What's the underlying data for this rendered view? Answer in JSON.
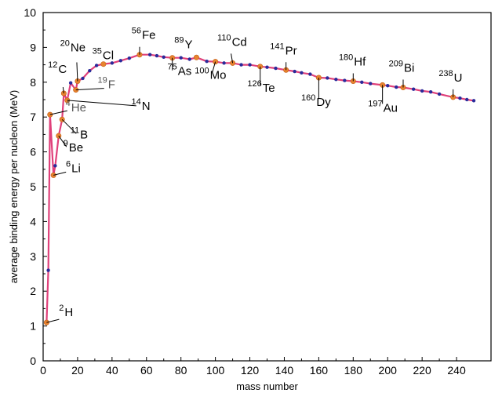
{
  "chart_data": {
    "type": "line",
    "title": "",
    "xlabel": "mass number",
    "ylabel": "average binding energy per nucleon (MeV)",
    "xlim": [
      0,
      260
    ],
    "ylim": [
      0,
      10
    ],
    "x_ticks": [
      0,
      20,
      40,
      60,
      80,
      100,
      120,
      140,
      160,
      180,
      200,
      220,
      240
    ],
    "y_ticks": [
      0,
      1,
      2,
      3,
      4,
      5,
      6,
      7,
      8,
      9,
      10
    ],
    "colors": {
      "curve": "#e0407a",
      "points": "#2a2a9a",
      "labeled_points": "#e8832e"
    },
    "series": [
      {
        "x": [
          2,
          3,
          4,
          6,
          7,
          9,
          11,
          12,
          14,
          16,
          19,
          20,
          23,
          27,
          31,
          35,
          40,
          45,
          50,
          56,
          62,
          66,
          70,
          75,
          80,
          85,
          89,
          95,
          100,
          105,
          110,
          115,
          120,
          126,
          130,
          135,
          141,
          146,
          150,
          155,
          160,
          165,
          170,
          175,
          180,
          185,
          190,
          197,
          200,
          205,
          209,
          215,
          220,
          225,
          230,
          238,
          242,
          246,
          250
        ],
        "y": [
          1.1,
          2.6,
          7.07,
          5.33,
          5.6,
          6.46,
          6.93,
          7.68,
          7.48,
          7.98,
          7.78,
          8.03,
          8.11,
          8.33,
          8.48,
          8.52,
          8.55,
          8.62,
          8.69,
          8.79,
          8.79,
          8.76,
          8.72,
          8.7,
          8.7,
          8.66,
          8.71,
          8.6,
          8.59,
          8.55,
          8.55,
          8.5,
          8.5,
          8.45,
          8.43,
          8.4,
          8.35,
          8.31,
          8.27,
          8.23,
          8.13,
          8.12,
          8.08,
          8.05,
          8.03,
          8.0,
          7.96,
          7.92,
          7.9,
          7.86,
          7.85,
          7.8,
          7.75,
          7.72,
          7.66,
          7.57,
          7.54,
          7.5,
          7.47
        ]
      }
    ],
    "isotopes": [
      {
        "mass": "2",
        "symbol": "H",
        "x": 2,
        "y": 1.1
      },
      {
        "mass": "6",
        "symbol": "Li",
        "x": 6,
        "y": 5.33
      },
      {
        "mass": "9",
        "symbol": "Be",
        "x": 9,
        "y": 6.46
      },
      {
        "mass": "4",
        "symbol": "He",
        "x": 4,
        "y": 7.07
      },
      {
        "mass": "11",
        "symbol": "B",
        "x": 11,
        "y": 6.93
      },
      {
        "mass": "14",
        "symbol": "N",
        "x": 14,
        "y": 7.48
      },
      {
        "mass": "12",
        "symbol": "C",
        "x": 12,
        "y": 7.68
      },
      {
        "mass": "19",
        "symbol": "F",
        "x": 19,
        "y": 7.78
      },
      {
        "mass": "20",
        "symbol": "Ne",
        "x": 20,
        "y": 8.03
      },
      {
        "mass": "35",
        "symbol": "Cl",
        "x": 35,
        "y": 8.52
      },
      {
        "mass": "56",
        "symbol": "Fe",
        "x": 56,
        "y": 8.79
      },
      {
        "mass": "75",
        "symbol": "As",
        "x": 75,
        "y": 8.7
      },
      {
        "mass": "89",
        "symbol": "Y",
        "x": 89,
        "y": 8.71
      },
      {
        "mass": "100",
        "symbol": "Mo",
        "x": 100,
        "y": 8.59
      },
      {
        "mass": "110",
        "symbol": "Cd",
        "x": 110,
        "y": 8.55
      },
      {
        "mass": "126",
        "symbol": "Te",
        "x": 126,
        "y": 8.45
      },
      {
        "mass": "141",
        "symbol": "Pr",
        "x": 141,
        "y": 8.35
      },
      {
        "mass": "160",
        "symbol": "Dy",
        "x": 160,
        "y": 8.13
      },
      {
        "mass": "180",
        "symbol": "Hf",
        "x": 180,
        "y": 8.03
      },
      {
        "mass": "197",
        "symbol": "Au",
        "x": 197,
        "y": 7.92
      },
      {
        "mass": "209",
        "symbol": "Bi",
        "x": 209,
        "y": 7.85
      },
      {
        "mass": "238",
        "symbol": "U",
        "x": 238,
        "y": 7.57
      }
    ]
  }
}
